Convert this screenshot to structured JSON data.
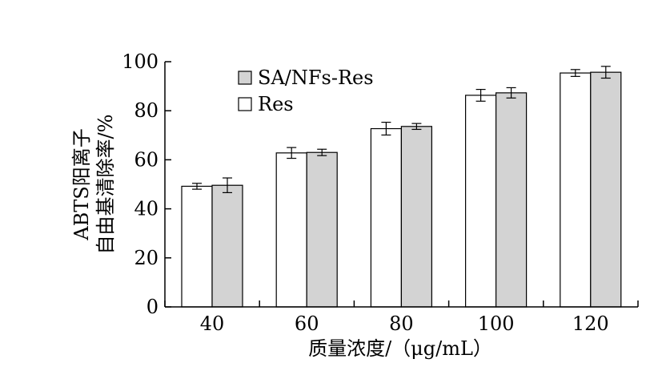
{
  "chart_data": {
    "type": "bar",
    "categories": [
      "40",
      "60",
      "80",
      "100",
      "120"
    ],
    "series": [
      {
        "name": "Res",
        "color": "#ffffff",
        "values": [
          49.2,
          62.8,
          72.7,
          86.3,
          95.4
        ],
        "errors": [
          1.2,
          2.2,
          2.6,
          2.4,
          1.4
        ]
      },
      {
        "name": "SA/NFs-Res",
        "color": "#d3d3d3",
        "values": [
          49.6,
          63.0,
          73.6,
          87.3,
          95.7
        ],
        "errors": [
          3.0,
          1.3,
          1.2,
          2.1,
          2.4
        ]
      }
    ],
    "xlabel": "质量浓度/（μg/mL）",
    "ylabel_line1": "ABTS阳离子",
    "ylabel_line2": "自由基清除率/%",
    "ylim": [
      0,
      100
    ],
    "yticks": [
      0,
      20,
      40,
      60,
      80,
      100
    ],
    "legend_order": [
      "SA/NFs-Res",
      "Res"
    ],
    "legend_position": "top-left",
    "grid": false
  }
}
